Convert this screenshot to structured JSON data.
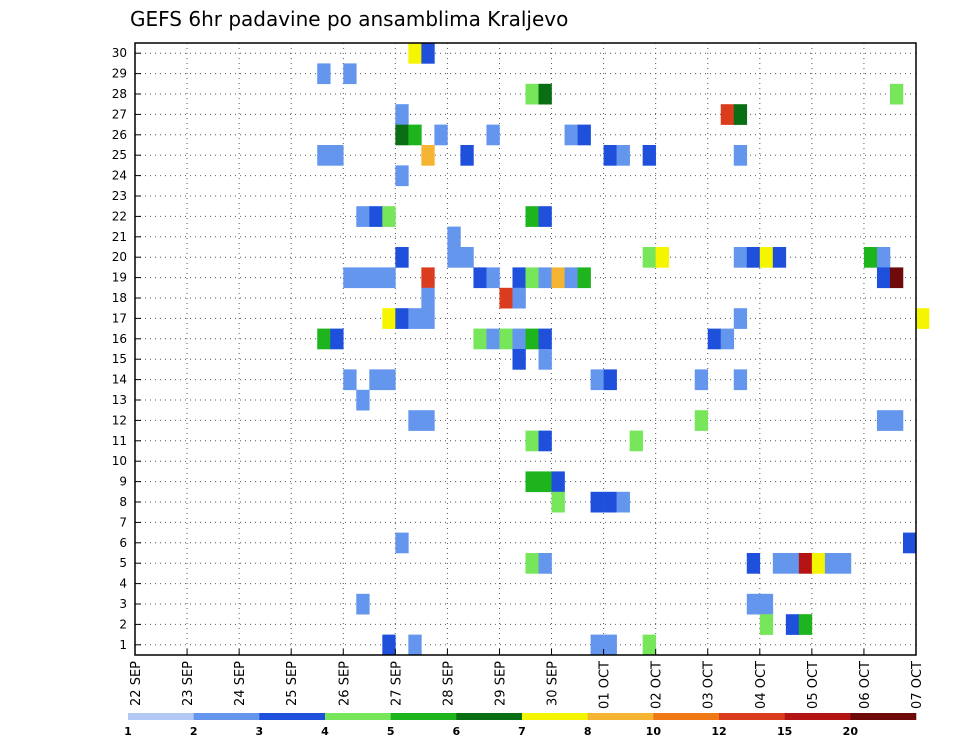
{
  "chart_data": {
    "type": "heatmap",
    "title": "GEFS 6hr padavine po ansamblima Kraljevo",
    "xlabel": "",
    "ylabel": "",
    "y_range": [
      1,
      30
    ],
    "x_range_days": [
      "22 SEP",
      "07 OCT"
    ],
    "x_step": "6h",
    "xtick_labels": [
      "22 SEP",
      "23 SEP",
      "24 SEP",
      "25 SEP",
      "26 SEP",
      "27 SEP",
      "28 SEP",
      "29 SEP",
      "30 SEP",
      "01 OCT",
      "02 OCT",
      "03 OCT",
      "04 OCT",
      "05 OCT",
      "06 OCT",
      "07 OCT"
    ],
    "ytick_labels": [
      "1",
      "2",
      "3",
      "4",
      "5",
      "6",
      "7",
      "8",
      "9",
      "10",
      "11",
      "12",
      "13",
      "14",
      "15",
      "16",
      "17",
      "18",
      "19",
      "20",
      "21",
      "22",
      "23",
      "24",
      "25",
      "26",
      "27",
      "28",
      "29",
      "30"
    ],
    "grid": true,
    "colorbar": {
      "position": "bottom",
      "labels": [
        "1",
        "2",
        "3",
        "4",
        "5",
        "6",
        "7",
        "8",
        "10",
        "12",
        "15",
        "20"
      ],
      "colors": [
        "#b4c8f5",
        "#6496ee",
        "#1f50dc",
        "#78e65a",
        "#1eb41e",
        "#0a6e14",
        "#f5f500",
        "#f5b432",
        "#f07814",
        "#dc3c1e",
        "#b41414",
        "#6e0a0a"
      ]
    },
    "cells": [
      [
        30,
        21,
        6
      ],
      [
        30,
        22,
        2
      ],
      [
        29,
        14,
        1
      ],
      [
        29,
        16,
        1
      ],
      [
        28,
        30,
        3
      ],
      [
        28,
        31,
        5
      ],
      [
        28,
        58,
        3
      ],
      [
        27,
        20,
        1
      ],
      [
        27,
        45,
        9
      ],
      [
        27,
        46,
        5
      ],
      [
        26,
        20,
        5
      ],
      [
        26,
        21,
        4
      ],
      [
        26,
        23,
        1
      ],
      [
        26,
        27,
        1
      ],
      [
        26,
        33,
        1
      ],
      [
        26,
        34,
        2
      ],
      [
        25,
        14,
        1
      ],
      [
        25,
        15,
        1
      ],
      [
        25,
        22,
        7
      ],
      [
        25,
        25,
        2
      ],
      [
        25,
        36,
        2
      ],
      [
        25,
        37,
        1
      ],
      [
        25,
        39,
        2
      ],
      [
        25,
        46,
        1
      ],
      [
        24,
        20,
        1
      ],
      [
        22,
        17,
        1
      ],
      [
        22,
        18,
        2
      ],
      [
        22,
        19,
        3
      ],
      [
        22,
        30,
        4
      ],
      [
        22,
        31,
        2
      ],
      [
        21,
        24,
        1
      ],
      [
        20,
        20,
        2
      ],
      [
        20,
        24,
        1
      ],
      [
        20,
        25,
        1
      ],
      [
        20,
        39,
        3
      ],
      [
        20,
        40,
        6
      ],
      [
        20,
        46,
        1
      ],
      [
        20,
        47,
        2
      ],
      [
        20,
        48,
        6
      ],
      [
        20,
        49,
        2
      ],
      [
        20,
        56,
        4
      ],
      [
        20,
        57,
        1
      ],
      [
        19,
        16,
        1
      ],
      [
        19,
        17,
        1
      ],
      [
        19,
        18,
        1
      ],
      [
        19,
        19,
        1
      ],
      [
        19,
        22,
        9
      ],
      [
        19,
        26,
        2
      ],
      [
        19,
        27,
        1
      ],
      [
        19,
        29,
        2
      ],
      [
        19,
        30,
        3
      ],
      [
        19,
        31,
        1
      ],
      [
        19,
        32,
        7
      ],
      [
        19,
        33,
        1
      ],
      [
        19,
        34,
        4
      ],
      [
        19,
        57,
        2
      ],
      [
        19,
        58,
        11
      ],
      [
        18,
        22,
        1
      ],
      [
        18,
        28,
        9
      ],
      [
        18,
        29,
        1
      ],
      [
        17,
        19,
        6
      ],
      [
        17,
        20,
        2
      ],
      [
        17,
        21,
        1
      ],
      [
        17,
        22,
        1
      ],
      [
        17,
        46,
        1
      ],
      [
        17,
        60,
        6
      ],
      [
        16,
        14,
        4
      ],
      [
        16,
        15,
        2
      ],
      [
        16,
        26,
        3
      ],
      [
        16,
        27,
        1
      ],
      [
        16,
        28,
        3
      ],
      [
        16,
        29,
        1
      ],
      [
        16,
        30,
        4
      ],
      [
        16,
        31,
        2
      ],
      [
        16,
        44,
        2
      ],
      [
        16,
        45,
        1
      ],
      [
        15,
        29,
        2
      ],
      [
        15,
        31,
        1
      ],
      [
        14,
        16,
        1
      ],
      [
        14,
        18,
        1
      ],
      [
        14,
        19,
        1
      ],
      [
        14,
        35,
        1
      ],
      [
        14,
        36,
        2
      ],
      [
        14,
        43,
        1
      ],
      [
        14,
        46,
        1
      ],
      [
        13,
        17,
        1
      ],
      [
        12,
        21,
        1
      ],
      [
        12,
        22,
        1
      ],
      [
        12,
        43,
        3
      ],
      [
        12,
        57,
        1
      ],
      [
        12,
        58,
        1
      ],
      [
        11,
        30,
        3
      ],
      [
        11,
        31,
        2
      ],
      [
        11,
        38,
        3
      ],
      [
        9,
        30,
        4
      ],
      [
        9,
        31,
        4
      ],
      [
        9,
        32,
        2
      ],
      [
        8,
        32,
        3
      ],
      [
        8,
        35,
        2
      ],
      [
        8,
        36,
        2
      ],
      [
        8,
        37,
        1
      ],
      [
        6,
        20,
        1
      ],
      [
        6,
        59,
        2
      ],
      [
        5,
        30,
        3
      ],
      [
        5,
        31,
        1
      ],
      [
        5,
        47,
        2
      ],
      [
        5,
        49,
        1
      ],
      [
        5,
        50,
        1
      ],
      [
        5,
        51,
        10
      ],
      [
        5,
        52,
        6
      ],
      [
        5,
        53,
        1
      ],
      [
        5,
        54,
        1
      ],
      [
        3,
        17,
        1
      ],
      [
        3,
        47,
        1
      ],
      [
        3,
        48,
        1
      ],
      [
        2,
        48,
        3
      ],
      [
        2,
        50,
        2
      ],
      [
        2,
        51,
        4
      ],
      [
        1,
        19,
        2
      ],
      [
        1,
        21,
        1
      ],
      [
        1,
        35,
        1
      ],
      [
        1,
        36,
        1
      ],
      [
        1,
        39,
        3
      ]
    ]
  }
}
